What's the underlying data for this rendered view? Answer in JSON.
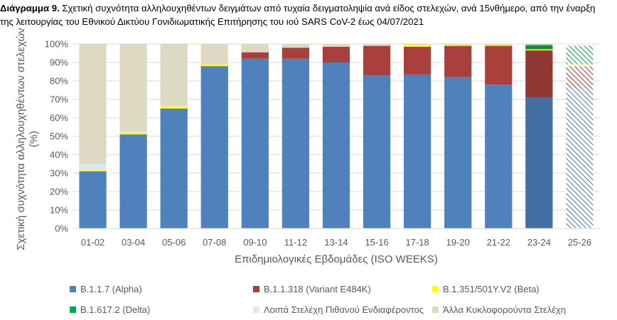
{
  "title": {
    "bold": "Διάγραμμα 9.",
    "line1": " Σχετική συχνότητα αλληλουχηθέντων δειγμάτων από τυχαία δειγματοληψία ανά είδος στελεχών, ανά 15νθήμερο, από την έναρξη",
    "line2": "της λειτουργίας του Εθνικού Δικτύου Γονιδιωματικής Επιτήρησης του ιού SARS CoV-2 έως 04/07/2021"
  },
  "chart_data": {
    "type": "bar",
    "stacked": true,
    "xlabel": "Επιδημιολογικές Εβδομάδες (ISO WEEKS)",
    "ylabel": "Σχετική συχνότητα αλληλουχηθέντων στελεχών (%)",
    "ylim": [
      0,
      100
    ],
    "yticks": [
      "0%",
      "10%",
      "20%",
      "30%",
      "40%",
      "50%",
      "60%",
      "70%",
      "80%",
      "90%",
      "100%"
    ],
    "grid": true,
    "legend_position": "bottom",
    "categories": [
      "01-02",
      "03-04",
      "05-06",
      "07-08",
      "09-10",
      "11-12",
      "13-14",
      "15-16",
      "17-18",
      "19-20",
      "21-22",
      "23-24",
      "25-26"
    ],
    "series": [
      {
        "name": "B.1.1.7 (Alpha)",
        "color": "#4f81bd",
        "values": [
          31,
          51,
          65,
          88,
          92,
          92,
          90,
          83,
          83.5,
          82,
          78,
          71,
          76
        ]
      },
      {
        "name": "B.1.1.318 (Variant E484K)",
        "color": "#a9403c",
        "values": [
          0,
          0,
          0,
          0,
          3.5,
          6,
          8.5,
          16,
          15,
          17,
          21,
          25.5,
          12
        ]
      },
      {
        "name": "B.1.351/501Y.V2 (Beta)",
        "color": "#ffff00",
        "values": [
          0.5,
          1,
          1,
          1,
          0,
          0,
          0,
          0,
          1,
          0.5,
          0.3,
          0.8,
          1
        ]
      },
      {
        "name": "B.1.617.2 (Delta)",
        "color": "#13a24c",
        "values": [
          0,
          0,
          0,
          0,
          0,
          0,
          0,
          0,
          0,
          0,
          0,
          2,
          10
        ]
      },
      {
        "name": "Λοιπά Στελέχη Πιθανού Ενδιαφέροντος",
        "color": "#dde8f3",
        "values": [
          3.5,
          0.5,
          0.5,
          0,
          0,
          0,
          0,
          0,
          0,
          0,
          0,
          0,
          0
        ]
      },
      {
        "name": "Άλλα Κυκλοφορούντα Στελέχη",
        "color": "#ded9c3",
        "values": [
          65,
          47.5,
          33.5,
          11,
          4.5,
          2,
          1.5,
          1,
          0.5,
          0.5,
          0.7,
          0.7,
          1
        ]
      }
    ],
    "hatched_categories": [
      "25-26"
    ],
    "darker_categories": [
      "23-24"
    ]
  }
}
